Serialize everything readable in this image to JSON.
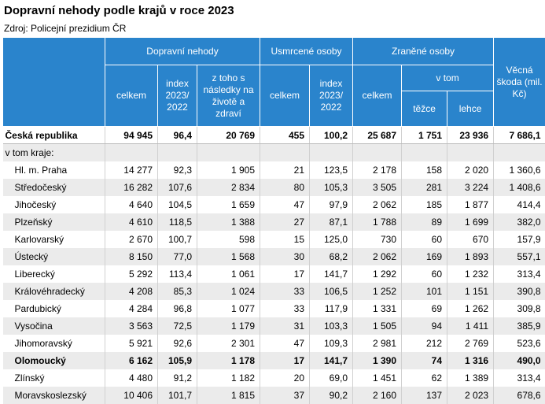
{
  "header": {
    "title": "Dopravní nehody podle krajů v roce 2023",
    "source": "Zdroj: Policejní prezidium ČR"
  },
  "table": {
    "header_cells": [
      "Dopravní nehody",
      "Usmrcené osoby",
      "Zraněné osoby",
      "Věcná škoda (mil. Kč)",
      "celkem",
      "index 2023/ 2022",
      "z toho s následky na životě a zdraví",
      "celkem",
      "index 2023/ 2022",
      "celkem",
      "v tom",
      "těžce",
      "lehce"
    ],
    "rows": [
      {
        "label": "Česká republika",
        "values": [
          "94 945",
          "96,4",
          "20 769",
          "455",
          "100,2",
          "25 687",
          "1 751",
          "23 936",
          "7 686,1"
        ]
      },
      {
        "label": "v tom kraje:",
        "values": []
      },
      {
        "label": "Hl. m. Praha",
        "values": [
          "14 277",
          "92,3",
          "1 905",
          "21",
          "123,5",
          "2 178",
          "158",
          "2 020",
          "1 360,6"
        ]
      },
      {
        "label": "Středočeský",
        "values": [
          "16 282",
          "107,6",
          "2 834",
          "80",
          "105,3",
          "3 505",
          "281",
          "3 224",
          "1 408,6"
        ]
      },
      {
        "label": "Jihočeský",
        "values": [
          "4 640",
          "104,5",
          "1 659",
          "47",
          "97,9",
          "2 062",
          "185",
          "1 877",
          "414,4"
        ]
      },
      {
        "label": "Plzeňský",
        "values": [
          "4 610",
          "118,5",
          "1 388",
          "27",
          "87,1",
          "1 788",
          "89",
          "1 699",
          "382,0"
        ]
      },
      {
        "label": "Karlovarský",
        "values": [
          "2 670",
          "100,7",
          "598",
          "15",
          "125,0",
          "730",
          "60",
          "670",
          "157,9"
        ]
      },
      {
        "label": "Ústecký",
        "values": [
          "8 150",
          "77,0",
          "1 568",
          "30",
          "68,2",
          "2 062",
          "169",
          "1 893",
          "557,1"
        ]
      },
      {
        "label": "Liberecký",
        "values": [
          "5 292",
          "113,4",
          "1 061",
          "17",
          "141,7",
          "1 292",
          "60",
          "1 232",
          "313,4"
        ]
      },
      {
        "label": "Královéhradecký",
        "values": [
          "4 208",
          "85,3",
          "1 024",
          "33",
          "106,5",
          "1 252",
          "101",
          "1 151",
          "390,8"
        ]
      },
      {
        "label": "Pardubický",
        "values": [
          "4 284",
          "96,8",
          "1 077",
          "33",
          "117,9",
          "1 331",
          "69",
          "1 262",
          "309,8"
        ]
      },
      {
        "label": "Vysočina",
        "values": [
          "3 563",
          "72,5",
          "1 179",
          "31",
          "103,3",
          "1 505",
          "94",
          "1 411",
          "385,9"
        ]
      },
      {
        "label": "Jihomoravský",
        "values": [
          "5 921",
          "92,6",
          "2 301",
          "47",
          "109,3",
          "2 981",
          "212",
          "2 769",
          "523,6"
        ]
      },
      {
        "label": "Olomoucký",
        "values": [
          "6 162",
          "105,9",
          "1 178",
          "17",
          "141,7",
          "1 390",
          "74",
          "1 316",
          "490,0"
        ]
      },
      {
        "label": "Zlínský",
        "values": [
          "4 480",
          "91,2",
          "1 182",
          "20",
          "69,0",
          "1 451",
          "62",
          "1 389",
          "313,4"
        ]
      },
      {
        "label": "Moravskoslezský",
        "values": [
          "10 406",
          "101,7",
          "1 815",
          "37",
          "90,2",
          "2 160",
          "137",
          "2 023",
          "678,6"
        ]
      }
    ]
  }
}
